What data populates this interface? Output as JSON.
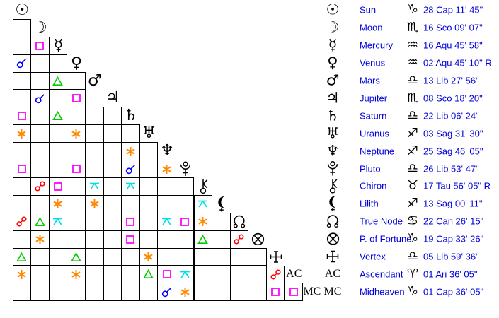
{
  "colors": {
    "conjunction": "#0000ff",
    "opposition": "#ff0000",
    "square": "#ff00ff",
    "trine": "#00cc00",
    "sextile": "#ff8800",
    "quincunx": "#00e0e8",
    "legend_text": "#0000dd",
    "glyph": "#000000",
    "grid_line": "#000000"
  },
  "planet_glyph_chars": {
    "sun": "☉",
    "moon": "☽",
    "mercury": "☿",
    "venus": "♀",
    "mars": "♂",
    "jupiter": "♃",
    "saturn": "♄",
    "uranus": "♅",
    "neptune": "♆"
  },
  "glyph_labels": {
    "ac": "AC",
    "mc": "MC"
  },
  "sign_glyph_chars": {
    "capricorn": "♑",
    "scorpio": "♏",
    "aquarius": "♒",
    "libra": "♎",
    "sagittarius": "♐",
    "taurus": "♉",
    "cancer": "♋",
    "aries": "♈"
  },
  "planets": [
    {
      "name": "Sun",
      "glyph": "sun",
      "sign": "capricorn",
      "position": "28 Cap 11' 45\""
    },
    {
      "name": "Moon",
      "glyph": "moon",
      "sign": "scorpio",
      "position": "16 Sco 09' 07\""
    },
    {
      "name": "Mercury",
      "glyph": "mercury",
      "sign": "aquarius",
      "position": "16 Aqu 45' 58\""
    },
    {
      "name": "Venus",
      "glyph": "venus",
      "sign": "aquarius",
      "position": "02 Aqu 45' 10\" R"
    },
    {
      "name": "Mars",
      "glyph": "mars",
      "sign": "libra",
      "position": "13 Lib 27' 56\""
    },
    {
      "name": "Jupiter",
      "glyph": "jupiter",
      "sign": "scorpio",
      "position": "08 Sco 18' 20\""
    },
    {
      "name": "Saturn",
      "glyph": "saturn",
      "sign": "libra",
      "position": "22 Lib 06' 24\""
    },
    {
      "name": "Uranus",
      "glyph": "uranus",
      "sign": "sagittarius",
      "position": "03 Sag 31' 30\""
    },
    {
      "name": "Neptune",
      "glyph": "neptune",
      "sign": "sagittarius",
      "position": "25 Sag 46' 05\""
    },
    {
      "name": "Pluto",
      "glyph": "pluto",
      "sign": "libra",
      "position": "26 Lib 53' 47\""
    },
    {
      "name": "Chiron",
      "glyph": "chiron",
      "sign": "taurus",
      "position": "17 Tau 56' 05\" R"
    },
    {
      "name": "Lilith",
      "glyph": "lilith",
      "sign": "sagittarius",
      "position": "13 Sag 00' 11\""
    },
    {
      "name": "True Node",
      "glyph": "true-node",
      "sign": "cancer",
      "position": "22 Can 26' 15\""
    },
    {
      "name": "P. of Fortune",
      "glyph": "fortune",
      "sign": "capricorn",
      "position": "19 Cap 33' 26\""
    },
    {
      "name": "Vertex",
      "glyph": "vertex",
      "sign": "libra",
      "position": "05 Lib 59' 36\""
    },
    {
      "name": "Ascendant",
      "glyph": "ac",
      "sign": "aries",
      "position": "01 Ari 36' 05\""
    },
    {
      "name": "Midheaven",
      "glyph": "mc",
      "sign": "capricorn",
      "position": "01 Cap 36' 05\""
    }
  ],
  "aspects": [
    {
      "row": 2,
      "col": 1,
      "type": "square"
    },
    {
      "row": 3,
      "col": 0,
      "type": "conjunction"
    },
    {
      "row": 4,
      "col": 2,
      "type": "trine"
    },
    {
      "row": 5,
      "col": 1,
      "type": "conjunction"
    },
    {
      "row": 5,
      "col": 3,
      "type": "square"
    },
    {
      "row": 6,
      "col": 0,
      "type": "square"
    },
    {
      "row": 6,
      "col": 2,
      "type": "trine"
    },
    {
      "row": 7,
      "col": 0,
      "type": "sextile"
    },
    {
      "row": 7,
      "col": 3,
      "type": "sextile"
    },
    {
      "row": 8,
      "col": 6,
      "type": "sextile"
    },
    {
      "row": 9,
      "col": 0,
      "type": "square"
    },
    {
      "row": 9,
      "col": 3,
      "type": "square"
    },
    {
      "row": 9,
      "col": 6,
      "type": "conjunction"
    },
    {
      "row": 9,
      "col": 8,
      "type": "sextile"
    },
    {
      "row": 10,
      "col": 1,
      "type": "opposition"
    },
    {
      "row": 10,
      "col": 2,
      "type": "square"
    },
    {
      "row": 10,
      "col": 4,
      "type": "quincunx"
    },
    {
      "row": 10,
      "col": 6,
      "type": "quincunx"
    },
    {
      "row": 11,
      "col": 2,
      "type": "sextile"
    },
    {
      "row": 11,
      "col": 4,
      "type": "sextile"
    },
    {
      "row": 11,
      "col": 10,
      "type": "quincunx"
    },
    {
      "row": 12,
      "col": 0,
      "type": "opposition"
    },
    {
      "row": 12,
      "col": 1,
      "type": "trine"
    },
    {
      "row": 12,
      "col": 2,
      "type": "quincunx"
    },
    {
      "row": 12,
      "col": 6,
      "type": "square"
    },
    {
      "row": 12,
      "col": 8,
      "type": "quincunx"
    },
    {
      "row": 12,
      "col": 9,
      "type": "square"
    },
    {
      "row": 12,
      "col": 10,
      "type": "sextile"
    },
    {
      "row": 13,
      "col": 1,
      "type": "sextile"
    },
    {
      "row": 13,
      "col": 6,
      "type": "square"
    },
    {
      "row": 13,
      "col": 10,
      "type": "trine"
    },
    {
      "row": 13,
      "col": 12,
      "type": "opposition"
    },
    {
      "row": 14,
      "col": 0,
      "type": "trine"
    },
    {
      "row": 14,
      "col": 3,
      "type": "trine"
    },
    {
      "row": 14,
      "col": 7,
      "type": "sextile"
    },
    {
      "row": 15,
      "col": 0,
      "type": "sextile"
    },
    {
      "row": 15,
      "col": 3,
      "type": "sextile"
    },
    {
      "row": 15,
      "col": 7,
      "type": "trine"
    },
    {
      "row": 15,
      "col": 8,
      "type": "square"
    },
    {
      "row": 15,
      "col": 9,
      "type": "quincunx"
    },
    {
      "row": 15,
      "col": 14,
      "type": "opposition"
    },
    {
      "row": 16,
      "col": 8,
      "type": "conjunction"
    },
    {
      "row": 16,
      "col": 9,
      "type": "sextile"
    },
    {
      "row": 16,
      "col": 14,
      "type": "square"
    },
    {
      "row": 16,
      "col": 15,
      "type": "square"
    }
  ]
}
